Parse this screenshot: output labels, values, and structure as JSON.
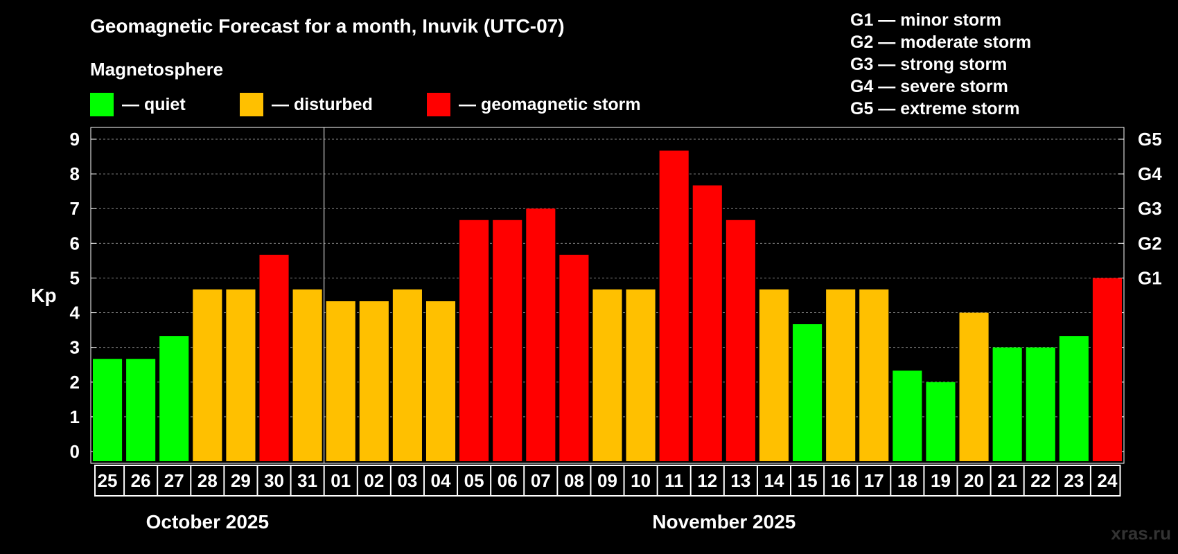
{
  "title": "Geomagnetic Forecast for a month, Inuvik (UTC-07)",
  "magnetosphere_label": "Magnetosphere",
  "legend": [
    {
      "label": "— quiet",
      "color": "#00ff00"
    },
    {
      "label": "— disturbed",
      "color": "#ffc000"
    },
    {
      "label": "— geomagnetic storm",
      "color": "#ff0000"
    }
  ],
  "storm_scale": [
    "G1 — minor storm",
    "G2 — moderate storm",
    "G3 — strong storm",
    "G4 — severe storm",
    "G5 — extreme storm"
  ],
  "watermark": "xras.ru",
  "colors": {
    "quiet": "#00ff00",
    "disturbed": "#ffc000",
    "storm": "#ff0000",
    "background": "#000000",
    "foreground": "#ffffff"
  },
  "chart_data": {
    "type": "bar",
    "title": "Geomagnetic Forecast for a month, Inuvik (UTC-07)",
    "ylabel": "Kp",
    "ylim": [
      0,
      9
    ],
    "yticks": [
      "0",
      "1",
      "2",
      "3",
      "4",
      "5",
      "6",
      "7",
      "8",
      "9"
    ],
    "right_ticks": [
      {
        "value": 5,
        "label": "G1"
      },
      {
        "value": 6,
        "label": "G2"
      },
      {
        "value": 7,
        "label": "G3"
      },
      {
        "value": 8,
        "label": "G4"
      },
      {
        "value": 9,
        "label": "G5"
      }
    ],
    "grid": "dashed horizontal",
    "categories": [
      "25",
      "26",
      "27",
      "28",
      "29",
      "30",
      "31",
      "01",
      "02",
      "03",
      "04",
      "05",
      "06",
      "07",
      "08",
      "09",
      "10",
      "11",
      "12",
      "13",
      "14",
      "15",
      "16",
      "17",
      "18",
      "19",
      "20",
      "21",
      "22",
      "23",
      "24"
    ],
    "values": [
      2.67,
      2.67,
      3.33,
      4.67,
      4.67,
      5.67,
      4.67,
      4.33,
      4.33,
      4.67,
      4.33,
      6.67,
      6.67,
      7.0,
      5.67,
      4.67,
      4.67,
      8.67,
      7.67,
      6.67,
      4.67,
      3.67,
      4.67,
      4.67,
      2.33,
      2.0,
      4.0,
      3.0,
      3.0,
      3.33,
      5.0
    ],
    "levels": [
      "quiet",
      "quiet",
      "quiet",
      "disturbed",
      "disturbed",
      "storm",
      "disturbed",
      "disturbed",
      "disturbed",
      "disturbed",
      "disturbed",
      "storm",
      "storm",
      "storm",
      "storm",
      "disturbed",
      "disturbed",
      "storm",
      "storm",
      "storm",
      "disturbed",
      "quiet",
      "disturbed",
      "disturbed",
      "quiet",
      "quiet",
      "disturbed",
      "quiet",
      "quiet",
      "quiet",
      "storm"
    ],
    "months": [
      {
        "label": "October 2025",
        "first_index": 0,
        "last_index": 6
      },
      {
        "label": "November 2025",
        "first_index": 7,
        "last_index": 30
      }
    ]
  }
}
